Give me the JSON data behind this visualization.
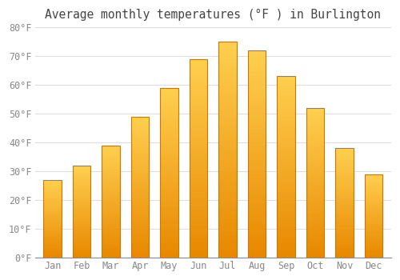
{
  "title": "Average monthly temperatures (°F ) in Burlington",
  "months": [
    "Jan",
    "Feb",
    "Mar",
    "Apr",
    "May",
    "Jun",
    "Jul",
    "Aug",
    "Sep",
    "Oct",
    "Nov",
    "Dec"
  ],
  "values": [
    27,
    32,
    39,
    49,
    59,
    69,
    75,
    72,
    63,
    52,
    38,
    29
  ],
  "bar_color_main": "#FFA500",
  "bar_color_light": "#FFD060",
  "bar_edge_color": "#CC7700",
  "background_color": "#FFFFFF",
  "grid_color": "#DDDDDD",
  "title_fontsize": 10.5,
  "tick_fontsize": 8.5,
  "ylim": [
    0,
    80
  ],
  "yticks": [
    0,
    10,
    20,
    30,
    40,
    50,
    60,
    70,
    80
  ],
  "ytick_labels": [
    "0°F",
    "10°F",
    "20°F",
    "30°F",
    "40°F",
    "50°F",
    "60°F",
    "70°F",
    "80°F"
  ]
}
